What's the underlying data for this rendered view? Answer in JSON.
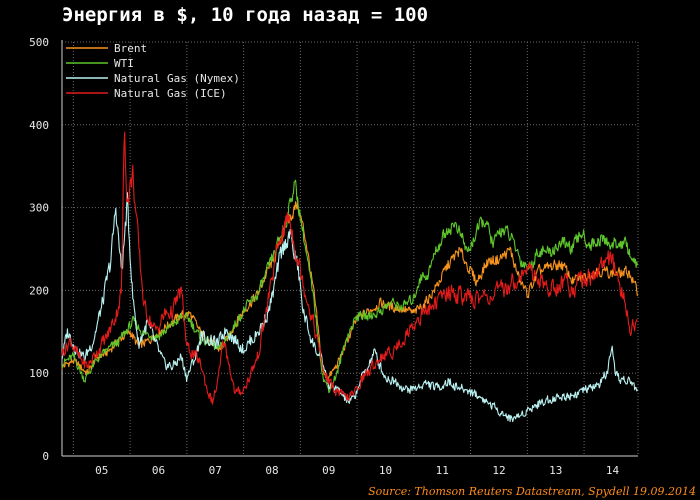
{
  "chart_data": {
    "type": "line",
    "title": "Энергия в $, 10 года назад = 100",
    "source": "Source: Thomson Reuters Datastream, Spydell 19.09.2014",
    "ylim": [
      0,
      500
    ],
    "yticks": [
      0,
      100,
      200,
      300,
      400,
      500
    ],
    "xlim": [
      2004.3,
      2014.45
    ],
    "xticks": [
      {
        "label": "05",
        "x": 2005.0
      },
      {
        "label": "06",
        "x": 2006.0
      },
      {
        "label": "07",
        "x": 2007.0
      },
      {
        "label": "08",
        "x": 2008.0
      },
      {
        "label": "09",
        "x": 2009.0
      },
      {
        "label": "10",
        "x": 2010.0
      },
      {
        "label": "11",
        "x": 2011.0
      },
      {
        "label": "12",
        "x": 2012.0
      },
      {
        "label": "13",
        "x": 2013.0
      },
      {
        "label": "14",
        "x": 2014.0
      }
    ],
    "grid": true,
    "legend": "top-left",
    "series": [
      {
        "name": "Brent",
        "color": "#f7941d",
        "points": [
          [
            2004.3,
            108
          ],
          [
            2004.5,
            115
          ],
          [
            2004.75,
            100
          ],
          [
            2004.9,
            118
          ],
          [
            2005.1,
            125
          ],
          [
            2005.3,
            140
          ],
          [
            2005.5,
            150
          ],
          [
            2005.65,
            132
          ],
          [
            2005.85,
            140
          ],
          [
            2006.0,
            150
          ],
          [
            2006.2,
            160
          ],
          [
            2006.4,
            170
          ],
          [
            2006.55,
            172
          ],
          [
            2006.75,
            148
          ],
          [
            2006.9,
            140
          ],
          [
            2007.05,
            128
          ],
          [
            2007.2,
            140
          ],
          [
            2007.35,
            160
          ],
          [
            2007.55,
            180
          ],
          [
            2007.75,
            195
          ],
          [
            2007.9,
            220
          ],
          [
            2008.05,
            240
          ],
          [
            2008.25,
            280
          ],
          [
            2008.45,
            305
          ],
          [
            2008.6,
            260
          ],
          [
            2008.75,
            190
          ],
          [
            2008.9,
            100
          ],
          [
            2009.0,
            95
          ],
          [
            2009.15,
            110
          ],
          [
            2009.3,
            135
          ],
          [
            2009.5,
            165
          ],
          [
            2009.7,
            175
          ],
          [
            2009.9,
            185
          ],
          [
            2010.1,
            180
          ],
          [
            2010.3,
            178
          ],
          [
            2010.5,
            172
          ],
          [
            2010.7,
            185
          ],
          [
            2010.9,
            205
          ],
          [
            2011.1,
            230
          ],
          [
            2011.3,
            248
          ],
          [
            2011.45,
            230
          ],
          [
            2011.6,
            210
          ],
          [
            2011.8,
            235
          ],
          [
            2012.0,
            238
          ],
          [
            2012.2,
            248
          ],
          [
            2012.35,
            215
          ],
          [
            2012.5,
            195
          ],
          [
            2012.7,
            222
          ],
          [
            2012.9,
            228
          ],
          [
            2013.1,
            232
          ],
          [
            2013.3,
            212
          ],
          [
            2013.5,
            215
          ],
          [
            2013.7,
            225
          ],
          [
            2013.9,
            222
          ],
          [
            2014.1,
            220
          ],
          [
            2014.3,
            222
          ],
          [
            2014.45,
            195
          ]
        ]
      },
      {
        "name": "WTI",
        "color": "#5ec62b",
        "points": [
          [
            2004.3,
            112
          ],
          [
            2004.5,
            120
          ],
          [
            2004.7,
            92
          ],
          [
            2004.9,
            115
          ],
          [
            2005.1,
            128
          ],
          [
            2005.3,
            138
          ],
          [
            2005.55,
            162
          ],
          [
            2005.75,
            148
          ],
          [
            2006.0,
            145
          ],
          [
            2006.2,
            155
          ],
          [
            2006.4,
            168
          ],
          [
            2006.55,
            165
          ],
          [
            2006.75,
            140
          ],
          [
            2006.9,
            138
          ],
          [
            2007.05,
            128
          ],
          [
            2007.2,
            140
          ],
          [
            2007.4,
            165
          ],
          [
            2007.55,
            180
          ],
          [
            2007.75,
            195
          ],
          [
            2007.9,
            220
          ],
          [
            2008.05,
            245
          ],
          [
            2008.25,
            285
          ],
          [
            2008.4,
            330
          ],
          [
            2008.55,
            270
          ],
          [
            2008.75,
            180
          ],
          [
            2008.9,
            95
          ],
          [
            2009.0,
            80
          ],
          [
            2009.15,
            100
          ],
          [
            2009.3,
            140
          ],
          [
            2009.5,
            170
          ],
          [
            2009.7,
            168
          ],
          [
            2009.9,
            175
          ],
          [
            2010.1,
            185
          ],
          [
            2010.3,
            180
          ],
          [
            2010.5,
            190
          ],
          [
            2010.6,
            215
          ],
          [
            2010.75,
            220
          ],
          [
            2010.9,
            250
          ],
          [
            2011.1,
            275
          ],
          [
            2011.25,
            280
          ],
          [
            2011.45,
            245
          ],
          [
            2011.6,
            270
          ],
          [
            2011.75,
            285
          ],
          [
            2011.9,
            255
          ],
          [
            2012.05,
            275
          ],
          [
            2012.2,
            265
          ],
          [
            2012.4,
            235
          ],
          [
            2012.55,
            228
          ],
          [
            2012.7,
            250
          ],
          [
            2012.9,
            245
          ],
          [
            2013.1,
            258
          ],
          [
            2013.3,
            250
          ],
          [
            2013.45,
            270
          ],
          [
            2013.6,
            255
          ],
          [
            2013.8,
            262
          ],
          [
            2014.0,
            255
          ],
          [
            2014.2,
            258
          ],
          [
            2014.35,
            240
          ],
          [
            2014.45,
            225
          ]
        ]
      },
      {
        "name": "Natural Gas (Nymex)",
        "color": "#b9f0f0",
        "points": [
          [
            2004.3,
            120
          ],
          [
            2004.4,
            150
          ],
          [
            2004.55,
            130
          ],
          [
            2004.7,
            118
          ],
          [
            2004.85,
            140
          ],
          [
            2005.0,
            180
          ],
          [
            2005.15,
            230
          ],
          [
            2005.25,
            300
          ],
          [
            2005.35,
            220
          ],
          [
            2005.45,
            305
          ],
          [
            2005.55,
            190
          ],
          [
            2005.65,
            135
          ],
          [
            2005.8,
            160
          ],
          [
            2005.95,
            135
          ],
          [
            2006.1,
            110
          ],
          [
            2006.25,
            108
          ],
          [
            2006.4,
            120
          ],
          [
            2006.5,
            95
          ],
          [
            2006.65,
            120
          ],
          [
            2006.75,
            145
          ],
          [
            2006.9,
            140
          ],
          [
            2007.05,
            135
          ],
          [
            2007.2,
            155
          ],
          [
            2007.35,
            140
          ],
          [
            2007.5,
            130
          ],
          [
            2007.7,
            145
          ],
          [
            2007.85,
            160
          ],
          [
            2008.0,
            190
          ],
          [
            2008.15,
            240
          ],
          [
            2008.3,
            270
          ],
          [
            2008.45,
            230
          ],
          [
            2008.55,
            175
          ],
          [
            2008.7,
            140
          ],
          [
            2008.9,
            110
          ],
          [
            2009.0,
            85
          ],
          [
            2009.15,
            80
          ],
          [
            2009.35,
            65
          ],
          [
            2009.45,
            70
          ],
          [
            2009.55,
            90
          ],
          [
            2009.7,
            110
          ],
          [
            2009.8,
            125
          ],
          [
            2009.9,
            110
          ],
          [
            2010.0,
            95
          ],
          [
            2010.2,
            90
          ],
          [
            2010.35,
            80
          ],
          [
            2010.55,
            82
          ],
          [
            2010.7,
            88
          ],
          [
            2010.9,
            82
          ],
          [
            2011.1,
            90
          ],
          [
            2011.3,
            82
          ],
          [
            2011.5,
            78
          ],
          [
            2011.7,
            70
          ],
          [
            2011.9,
            60
          ],
          [
            2012.05,
            52
          ],
          [
            2012.2,
            45
          ],
          [
            2012.35,
            48
          ],
          [
            2012.55,
            58
          ],
          [
            2012.75,
            65
          ],
          [
            2012.95,
            70
          ],
          [
            2013.15,
            72
          ],
          [
            2013.35,
            75
          ],
          [
            2013.55,
            80
          ],
          [
            2013.75,
            85
          ],
          [
            2013.9,
            100
          ],
          [
            2014.0,
            125
          ],
          [
            2014.05,
            95
          ],
          [
            2014.2,
            92
          ],
          [
            2014.35,
            88
          ],
          [
            2014.45,
            78
          ]
        ]
      },
      {
        "name": "Natural Gas (ICE)",
        "color": "#e21b1b",
        "points": [
          [
            2004.3,
            125
          ],
          [
            2004.45,
            140
          ],
          [
            2004.6,
            118
          ],
          [
            2004.75,
            108
          ],
          [
            2004.95,
            130
          ],
          [
            2005.1,
            145
          ],
          [
            2005.25,
            170
          ],
          [
            2005.35,
            200
          ],
          [
            2005.4,
            400
          ],
          [
            2005.45,
            310
          ],
          [
            2005.55,
            340
          ],
          [
            2005.65,
            250
          ],
          [
            2005.75,
            180
          ],
          [
            2005.85,
            165
          ],
          [
            2005.95,
            150
          ],
          [
            2006.1,
            170
          ],
          [
            2006.25,
            175
          ],
          [
            2006.4,
            200
          ],
          [
            2006.5,
            130
          ],
          [
            2006.6,
            125
          ],
          [
            2006.75,
            110
          ],
          [
            2006.85,
            82
          ],
          [
            2006.95,
            65
          ],
          [
            2007.05,
            90
          ],
          [
            2007.15,
            140
          ],
          [
            2007.25,
            110
          ],
          [
            2007.35,
            75
          ],
          [
            2007.5,
            80
          ],
          [
            2007.6,
            95
          ],
          [
            2007.75,
            120
          ],
          [
            2007.9,
            175
          ],
          [
            2008.0,
            215
          ],
          [
            2008.15,
            265
          ],
          [
            2008.3,
            290
          ],
          [
            2008.45,
            240
          ],
          [
            2008.55,
            210
          ],
          [
            2008.7,
            170
          ],
          [
            2008.8,
            140
          ],
          [
            2008.9,
            105
          ],
          [
            2009.0,
            90
          ],
          [
            2009.1,
            80
          ],
          [
            2009.3,
            70
          ],
          [
            2009.45,
            75
          ],
          [
            2009.6,
            95
          ],
          [
            2009.75,
            105
          ],
          [
            2009.9,
            120
          ],
          [
            2010.1,
            125
          ],
          [
            2010.3,
            140
          ],
          [
            2010.5,
            160
          ],
          [
            2010.7,
            175
          ],
          [
            2010.9,
            185
          ],
          [
            2011.1,
            200
          ],
          [
            2011.3,
            195
          ],
          [
            2011.5,
            188
          ],
          [
            2011.7,
            192
          ],
          [
            2011.9,
            195
          ],
          [
            2012.1,
            200
          ],
          [
            2012.3,
            215
          ],
          [
            2012.5,
            225
          ],
          [
            2012.7,
            215
          ],
          [
            2012.9,
            200
          ],
          [
            2013.1,
            210
          ],
          [
            2013.3,
            205
          ],
          [
            2013.5,
            215
          ],
          [
            2013.7,
            220
          ],
          [
            2013.9,
            240
          ],
          [
            2014.0,
            230
          ],
          [
            2014.1,
            210
          ],
          [
            2014.2,
            190
          ],
          [
            2014.3,
            155
          ],
          [
            2014.45,
            165
          ]
        ]
      }
    ]
  }
}
